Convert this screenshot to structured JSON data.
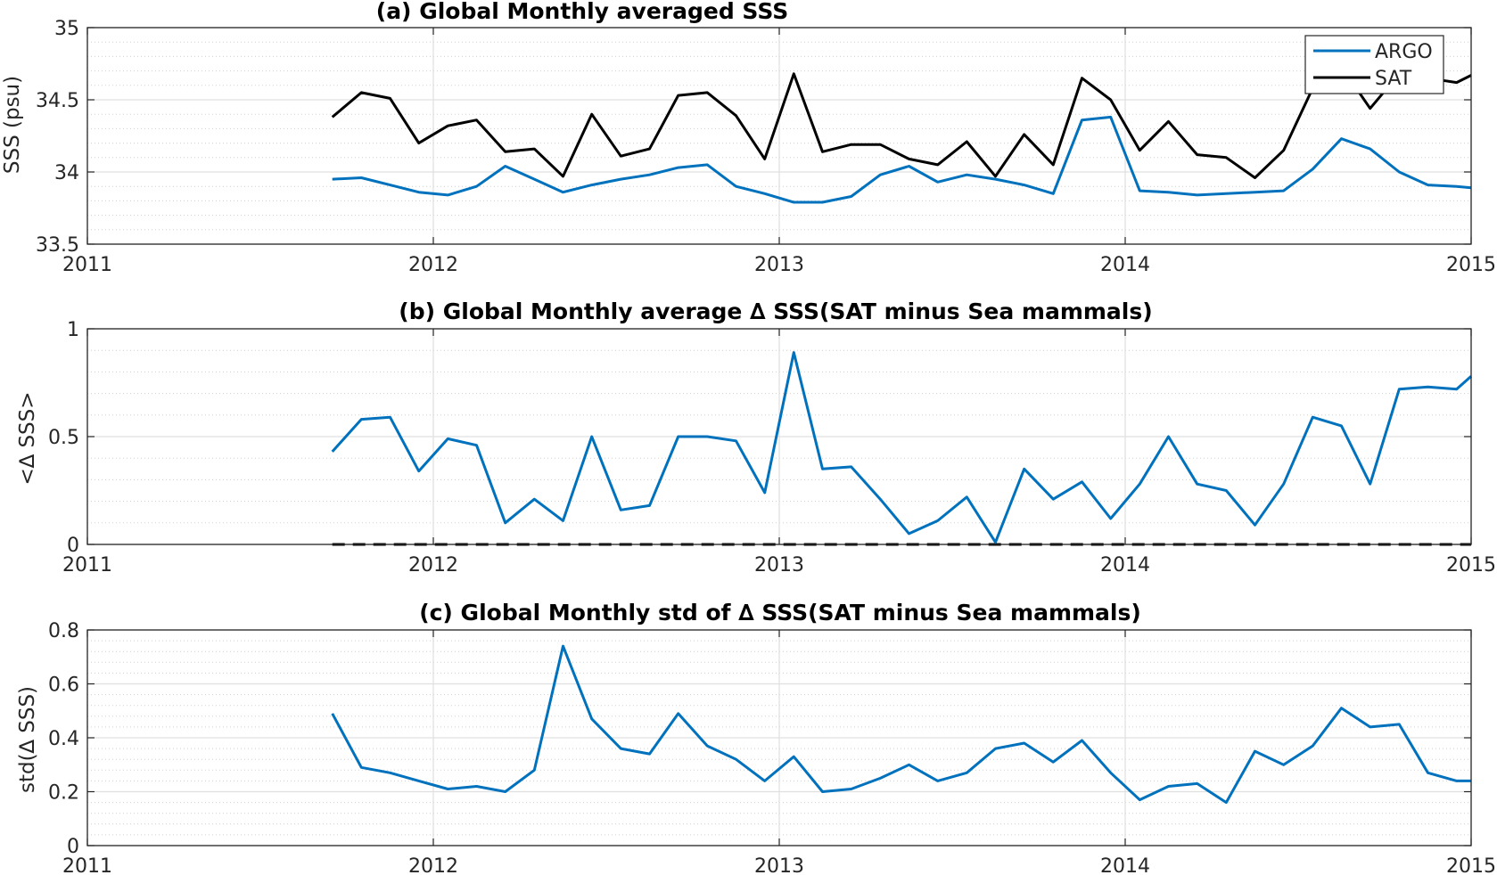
{
  "colors": {
    "ARGO": "#0072BD",
    "SAT": "#000000",
    "zero_line": "#000000"
  },
  "chart_data": [
    {
      "type": "line",
      "title": "(a) Global Monthly averaged SSS",
      "ylabel": "SSS (psu)",
      "xlim": [
        2011,
        2015
      ],
      "ylim": [
        33.5,
        35
      ],
      "xticks": [
        "2011",
        "2012",
        "2013",
        "2014",
        "2015"
      ],
      "yticks": [
        "33.5",
        "34",
        "34.5",
        "35"
      ],
      "ytick_values": [
        33.5,
        34,
        34.5,
        35
      ],
      "grid": true,
      "legend": "top-right",
      "x": [
        2011.708,
        2011.792,
        2011.875,
        2011.958,
        2012.042,
        2012.125,
        2012.208,
        2012.292,
        2012.375,
        2012.458,
        2012.542,
        2012.625,
        2012.708,
        2012.792,
        2012.875,
        2012.958,
        2013.042,
        2013.125,
        2013.208,
        2013.292,
        2013.375,
        2013.458,
        2013.542,
        2013.625,
        2013.708,
        2013.792,
        2013.875,
        2013.958,
        2014.042,
        2014.125,
        2014.208,
        2014.292,
        2014.375,
        2014.458,
        2014.542,
        2014.625,
        2014.708,
        2014.792,
        2014.875,
        2014.958,
        2015.0
      ],
      "series": [
        {
          "name": "ARGO",
          "color": "#0072BD",
          "values": [
            33.95,
            33.96,
            33.91,
            33.86,
            33.84,
            33.9,
            34.04,
            33.95,
            33.86,
            33.91,
            33.95,
            33.98,
            34.03,
            34.05,
            33.9,
            33.85,
            33.79,
            33.79,
            33.83,
            33.98,
            34.04,
            33.93,
            33.98,
            33.95,
            33.91,
            33.85,
            34.36,
            34.38,
            33.87,
            33.86,
            33.84,
            33.85,
            33.86,
            33.87,
            34.02,
            34.23,
            34.16,
            34.0,
            33.91,
            33.9,
            33.89
          ]
        },
        {
          "name": "SAT",
          "color": "#000000",
          "values": [
            34.38,
            34.55,
            34.51,
            34.2,
            34.32,
            34.36,
            34.14,
            34.16,
            33.97,
            34.4,
            34.11,
            34.16,
            34.53,
            34.55,
            34.39,
            34.09,
            34.68,
            34.14,
            34.19,
            34.19,
            34.09,
            34.05,
            34.21,
            33.97,
            34.26,
            34.05,
            34.65,
            34.5,
            34.15,
            34.35,
            34.12,
            34.1,
            33.96,
            34.15,
            34.58,
            34.73,
            34.44,
            34.68,
            34.65,
            34.62,
            34.67
          ]
        }
      ]
    },
    {
      "type": "line",
      "title": "(b) Global Monthly average ∆ SSS(SAT minus Sea mammals)",
      "ylabel": "<∆ SSS>",
      "xlim": [
        2011,
        2015
      ],
      "ylim": [
        0,
        1
      ],
      "xticks": [
        "2011",
        "2012",
        "2013",
        "2014",
        "2015"
      ],
      "yticks": [
        "0",
        "0.5",
        "1"
      ],
      "ytick_values": [
        0,
        0.5,
        1
      ],
      "grid": true,
      "zero_line": "dashed",
      "x": [
        2011.708,
        2011.792,
        2011.875,
        2011.958,
        2012.042,
        2012.125,
        2012.208,
        2012.292,
        2012.375,
        2012.458,
        2012.542,
        2012.625,
        2012.708,
        2012.792,
        2012.875,
        2012.958,
        2013.042,
        2013.125,
        2013.208,
        2013.292,
        2013.375,
        2013.458,
        2013.542,
        2013.625,
        2013.708,
        2013.792,
        2013.875,
        2013.958,
        2014.042,
        2014.125,
        2014.208,
        2014.292,
        2014.375,
        2014.458,
        2014.542,
        2014.625,
        2014.708,
        2014.792,
        2014.875,
        2014.958,
        2015.0
      ],
      "series": [
        {
          "color": "#0072BD",
          "values": [
            0.43,
            0.58,
            0.59,
            0.34,
            0.49,
            0.46,
            0.1,
            0.21,
            0.11,
            0.5,
            0.16,
            0.18,
            0.5,
            0.5,
            0.48,
            0.24,
            0.89,
            0.35,
            0.36,
            0.21,
            0.05,
            0.11,
            0.22,
            0.01,
            0.35,
            0.21,
            0.29,
            0.12,
            0.28,
            0.5,
            0.28,
            0.25,
            0.09,
            0.28,
            0.59,
            0.55,
            0.28,
            0.72,
            0.73,
            0.72,
            0.78
          ]
        }
      ]
    },
    {
      "type": "line",
      "title": "(c) Global Monthly std of ∆ SSS(SAT minus Sea mammals)",
      "ylabel": "std(∆ SSS)",
      "xlim": [
        2011,
        2015
      ],
      "ylim": [
        0,
        0.8
      ],
      "xticks": [
        "2011",
        "2012",
        "2013",
        "2014",
        "2015"
      ],
      "yticks": [
        "0",
        "0.2",
        "0.4",
        "0.6",
        "0.8"
      ],
      "ytick_values": [
        0,
        0.2,
        0.4,
        0.6,
        0.8
      ],
      "grid": true,
      "x": [
        2011.708,
        2011.792,
        2011.875,
        2011.958,
        2012.042,
        2012.125,
        2012.208,
        2012.292,
        2012.375,
        2012.458,
        2012.542,
        2012.625,
        2012.708,
        2012.792,
        2012.875,
        2012.958,
        2013.042,
        2013.125,
        2013.208,
        2013.292,
        2013.375,
        2013.458,
        2013.542,
        2013.625,
        2013.708,
        2013.792,
        2013.875,
        2013.958,
        2014.042,
        2014.125,
        2014.208,
        2014.292,
        2014.375,
        2014.458,
        2014.542,
        2014.625,
        2014.708,
        2014.792,
        2014.875,
        2014.958,
        2015.0
      ],
      "series": [
        {
          "color": "#0072BD",
          "values": [
            0.49,
            0.29,
            0.27,
            0.24,
            0.21,
            0.22,
            0.2,
            0.28,
            0.74,
            0.47,
            0.36,
            0.34,
            0.49,
            0.37,
            0.32,
            0.24,
            0.33,
            0.2,
            0.21,
            0.25,
            0.3,
            0.24,
            0.27,
            0.36,
            0.38,
            0.31,
            0.39,
            0.27,
            0.17,
            0.22,
            0.23,
            0.16,
            0.35,
            0.3,
            0.37,
            0.51,
            0.44,
            0.45,
            0.27,
            0.24,
            0.24
          ]
        }
      ]
    }
  ]
}
